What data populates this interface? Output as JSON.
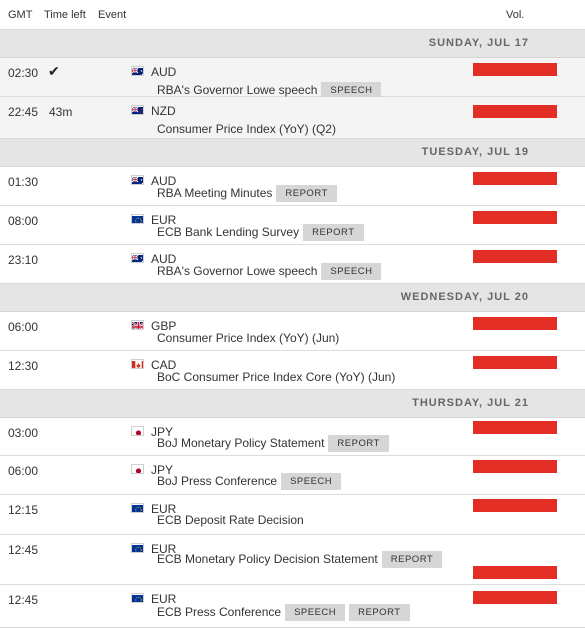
{
  "header": {
    "gmt": "GMT",
    "time_left": "Time left",
    "event": "Event",
    "vol": "Vol."
  },
  "colors": {
    "vol_bar": "#e22e24",
    "day_bg": "#e5e5e5",
    "tag_bg": "#d6d6d6"
  },
  "days": [
    {
      "label": "SUNDAY, JUL 17"
    },
    {
      "label": "TUESDAY, JUL 19"
    },
    {
      "label": "WEDNESDAY, JUL 20"
    },
    {
      "label": "THURSDAY, JUL 21"
    }
  ],
  "events": [
    {
      "time": "02:30",
      "time_left": "",
      "done": true,
      "currency": "AUD",
      "flag": "au",
      "name": "RBA's Governor Lowe speech",
      "tags": [
        "SPEECH"
      ],
      "volatility": "high"
    },
    {
      "time": "22:45",
      "time_left": "43m",
      "done": false,
      "currency": "NZD",
      "flag": "nz",
      "name": "Consumer Price Index (YoY) (Q2)",
      "tags": [],
      "volatility": "high"
    },
    {
      "time": "01:30",
      "time_left": "",
      "done": false,
      "currency": "AUD",
      "flag": "au",
      "name": "RBA Meeting Minutes",
      "tags": [
        "REPORT"
      ],
      "volatility": "high"
    },
    {
      "time": "08:00",
      "time_left": "",
      "done": false,
      "currency": "EUR",
      "flag": "eu",
      "name": "ECB Bank Lending Survey",
      "tags": [
        "REPORT"
      ],
      "volatility": "high"
    },
    {
      "time": "23:10",
      "time_left": "",
      "done": false,
      "currency": "AUD",
      "flag": "au",
      "name": "RBA's Governor Lowe speech",
      "tags": [
        "SPEECH"
      ],
      "volatility": "high"
    },
    {
      "time": "06:00",
      "time_left": "",
      "done": false,
      "currency": "GBP",
      "flag": "gb",
      "name": "Consumer Price Index (YoY) (Jun)",
      "tags": [],
      "volatility": "high"
    },
    {
      "time": "12:30",
      "time_left": "",
      "done": false,
      "currency": "CAD",
      "flag": "ca",
      "name": "BoC Consumer Price Index Core (YoY) (Jun)",
      "tags": [],
      "volatility": "high"
    },
    {
      "time": "03:00",
      "time_left": "",
      "done": false,
      "currency": "JPY",
      "flag": "jp",
      "name": "BoJ Monetary Policy Statement",
      "tags": [
        "REPORT"
      ],
      "volatility": "high"
    },
    {
      "time": "06:00",
      "time_left": "",
      "done": false,
      "currency": "JPY",
      "flag": "jp",
      "name": "BoJ Press Conference",
      "tags": [
        "SPEECH"
      ],
      "volatility": "high"
    },
    {
      "time": "12:15",
      "time_left": "",
      "done": false,
      "currency": "EUR",
      "flag": "eu",
      "name": "ECB Deposit Rate Decision",
      "tags": [],
      "volatility": "high"
    },
    {
      "time": "12:45",
      "time_left": "",
      "done": false,
      "currency": "EUR",
      "flag": "eu",
      "name": "ECB Monetary Policy Decision Statement",
      "tags": [
        "REPORT"
      ],
      "volatility": "high"
    },
    {
      "time": "12:45",
      "time_left": "",
      "done": false,
      "currency": "EUR",
      "flag": "eu",
      "name": "ECB Press Conference",
      "tags": [
        "SPEECH",
        "REPORT"
      ],
      "volatility": "high"
    }
  ]
}
